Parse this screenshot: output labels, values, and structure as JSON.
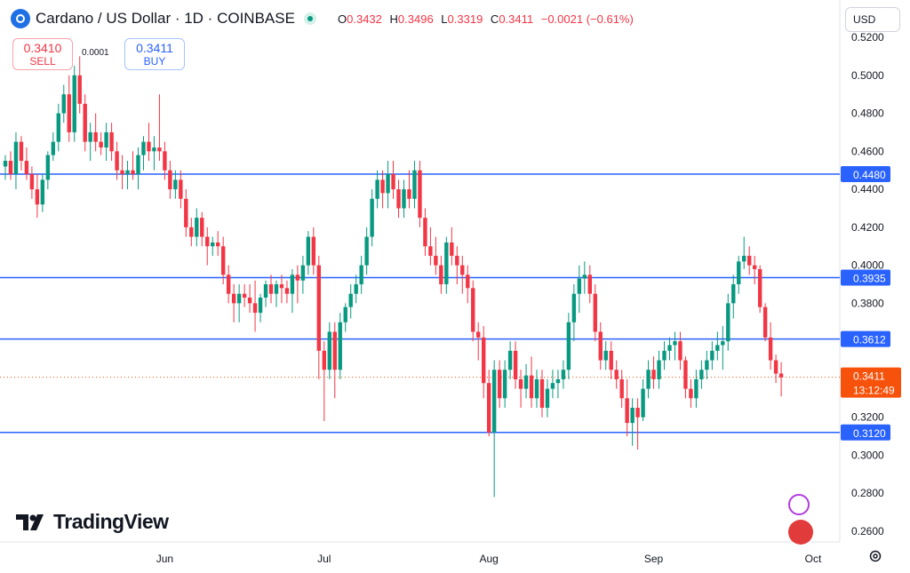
{
  "header": {
    "title": "Cardano / US Dollar · 1D · COINBASE",
    "ohlc": [
      {
        "k": "O",
        "v": "0.3432"
      },
      {
        "k": "H",
        "v": "0.3496"
      },
      {
        "k": "L",
        "v": "0.3319"
      },
      {
        "k": "C",
        "v": "0.3411"
      }
    ],
    "change": "−0.0021 (−0.61%)",
    "currency": "USD"
  },
  "trade": {
    "sell_price": "0.3410",
    "sell_label": "SELL",
    "buy_price": "0.3411",
    "buy_label": "BUY",
    "spread": "0.0001"
  },
  "brand": "TradingView",
  "chart_data": {
    "type": "candlestick",
    "symbol": "Cardano / US Dollar",
    "interval": "1D",
    "exchange": "COINBASE",
    "ylim": [
      0.25,
      0.525
    ],
    "y_ticks": [
      "0.2600",
      "0.2800",
      "0.3000",
      "0.3200",
      "0.3400",
      "0.3600",
      "0.3800",
      "0.4000",
      "0.4200",
      "0.4400",
      "0.4600",
      "0.4800",
      "0.5000",
      "0.5200"
    ],
    "x_ticks": [
      {
        "label": "Jun",
        "day": 30
      },
      {
        "label": "Jul",
        "day": 60
      },
      {
        "label": "Aug",
        "day": 91
      },
      {
        "label": "Sep",
        "day": 122
      },
      {
        "label": "Oct",
        "day": 152
      }
    ],
    "horizontal_lines": [
      {
        "value": 0.448,
        "label": "0.4480"
      },
      {
        "value": 0.3935,
        "label": "0.3935"
      },
      {
        "value": 0.3612,
        "label": "0.3612"
      },
      {
        "value": 0.312,
        "label": "0.3120"
      }
    ],
    "last_price": {
      "value": 0.3411,
      "label": "0.3411",
      "countdown": "13:12:49"
    },
    "colors": {
      "up": "#089981",
      "down": "#f23645",
      "line": "#2962ff",
      "last": "#f7520b"
    },
    "candles": [
      [
        0.452,
        0.458,
        0.445,
        0.455
      ],
      [
        0.455,
        0.46,
        0.445,
        0.448
      ],
      [
        0.448,
        0.47,
        0.44,
        0.465
      ],
      [
        0.465,
        0.468,
        0.45,
        0.455
      ],
      [
        0.455,
        0.462,
        0.445,
        0.448
      ],
      [
        0.448,
        0.452,
        0.435,
        0.44
      ],
      [
        0.44,
        0.448,
        0.425,
        0.432
      ],
      [
        0.432,
        0.448,
        0.428,
        0.445
      ],
      [
        0.445,
        0.46,
        0.44,
        0.458
      ],
      [
        0.458,
        0.47,
        0.455,
        0.465
      ],
      [
        0.465,
        0.485,
        0.46,
        0.48
      ],
      [
        0.48,
        0.495,
        0.475,
        0.49
      ],
      [
        0.49,
        0.5,
        0.465,
        0.47
      ],
      [
        0.47,
        0.505,
        0.465,
        0.5
      ],
      [
        0.5,
        0.51,
        0.48,
        0.485
      ],
      [
        0.485,
        0.49,
        0.46,
        0.465
      ],
      [
        0.465,
        0.475,
        0.455,
        0.47
      ],
      [
        0.47,
        0.48,
        0.46,
        0.465
      ],
      [
        0.465,
        0.47,
        0.458,
        0.462
      ],
      [
        0.462,
        0.475,
        0.455,
        0.47
      ],
      [
        0.47,
        0.475,
        0.455,
        0.46
      ],
      [
        0.46,
        0.465,
        0.445,
        0.45
      ],
      [
        0.45,
        0.458,
        0.44,
        0.448
      ],
      [
        0.448,
        0.455,
        0.44,
        0.45
      ],
      [
        0.45,
        0.46,
        0.445,
        0.448
      ],
      [
        0.448,
        0.462,
        0.44,
        0.458
      ],
      [
        0.458,
        0.468,
        0.45,
        0.465
      ],
      [
        0.465,
        0.475,
        0.455,
        0.46
      ],
      [
        0.46,
        0.468,
        0.45,
        0.462
      ],
      [
        0.462,
        0.49,
        0.455,
        0.46
      ],
      [
        0.46,
        0.465,
        0.445,
        0.45
      ],
      [
        0.45,
        0.455,
        0.435,
        0.44
      ],
      [
        0.44,
        0.45,
        0.435,
        0.445
      ],
      [
        0.445,
        0.45,
        0.43,
        0.435
      ],
      [
        0.435,
        0.44,
        0.415,
        0.42
      ],
      [
        0.42,
        0.425,
        0.41,
        0.415
      ],
      [
        0.415,
        0.43,
        0.41,
        0.425
      ],
      [
        0.425,
        0.428,
        0.41,
        0.415
      ],
      [
        0.415,
        0.42,
        0.4,
        0.41
      ],
      [
        0.41,
        0.415,
        0.405,
        0.412
      ],
      [
        0.412,
        0.418,
        0.405,
        0.41
      ],
      [
        0.41,
        0.415,
        0.39,
        0.395
      ],
      [
        0.395,
        0.4,
        0.38,
        0.385
      ],
      [
        0.385,
        0.39,
        0.37,
        0.38
      ],
      [
        0.38,
        0.39,
        0.37,
        0.385
      ],
      [
        0.385,
        0.39,
        0.378,
        0.383
      ],
      [
        0.383,
        0.39,
        0.375,
        0.38
      ],
      [
        0.38,
        0.392,
        0.365,
        0.375
      ],
      [
        0.375,
        0.385,
        0.37,
        0.383
      ],
      [
        0.383,
        0.392,
        0.378,
        0.39
      ],
      [
        0.39,
        0.395,
        0.38,
        0.385
      ],
      [
        0.385,
        0.392,
        0.378,
        0.39
      ],
      [
        0.39,
        0.395,
        0.38,
        0.388
      ],
      [
        0.388,
        0.392,
        0.38,
        0.385
      ],
      [
        0.385,
        0.398,
        0.375,
        0.395
      ],
      [
        0.395,
        0.4,
        0.38,
        0.392
      ],
      [
        0.392,
        0.405,
        0.385,
        0.4
      ],
      [
        0.4,
        0.418,
        0.395,
        0.415
      ],
      [
        0.415,
        0.42,
        0.395,
        0.4
      ],
      [
        0.4,
        0.405,
        0.34,
        0.355
      ],
      [
        0.355,
        0.36,
        0.318,
        0.345
      ],
      [
        0.345,
        0.37,
        0.34,
        0.365
      ],
      [
        0.365,
        0.37,
        0.33,
        0.345
      ],
      [
        0.345,
        0.375,
        0.34,
        0.37
      ],
      [
        0.37,
        0.38,
        0.365,
        0.378
      ],
      [
        0.378,
        0.39,
        0.372,
        0.385
      ],
      [
        0.385,
        0.395,
        0.38,
        0.39
      ],
      [
        0.39,
        0.405,
        0.385,
        0.4
      ],
      [
        0.4,
        0.42,
        0.395,
        0.415
      ],
      [
        0.415,
        0.44,
        0.41,
        0.435
      ],
      [
        0.435,
        0.45,
        0.43,
        0.445
      ],
      [
        0.445,
        0.45,
        0.43,
        0.438
      ],
      [
        0.438,
        0.455,
        0.43,
        0.448
      ],
      [
        0.448,
        0.455,
        0.435,
        0.44
      ],
      [
        0.44,
        0.445,
        0.425,
        0.43
      ],
      [
        0.43,
        0.445,
        0.425,
        0.44
      ],
      [
        0.44,
        0.45,
        0.43,
        0.435
      ],
      [
        0.435,
        0.455,
        0.43,
        0.45
      ],
      [
        0.45,
        0.455,
        0.42,
        0.425
      ],
      [
        0.425,
        0.43,
        0.405,
        0.41
      ],
      [
        0.41,
        0.42,
        0.4,
        0.405
      ],
      [
        0.405,
        0.415,
        0.395,
        0.4
      ],
      [
        0.4,
        0.405,
        0.385,
        0.39
      ],
      [
        0.39,
        0.415,
        0.385,
        0.412
      ],
      [
        0.412,
        0.42,
        0.4,
        0.405
      ],
      [
        0.405,
        0.41,
        0.39,
        0.4
      ],
      [
        0.4,
        0.405,
        0.385,
        0.395
      ],
      [
        0.395,
        0.4,
        0.38,
        0.388
      ],
      [
        0.388,
        0.392,
        0.36,
        0.365
      ],
      [
        0.365,
        0.37,
        0.35,
        0.362
      ],
      [
        0.362,
        0.368,
        0.33,
        0.338
      ],
      [
        0.338,
        0.345,
        0.31,
        0.312
      ],
      [
        0.312,
        0.35,
        0.278,
        0.345
      ],
      [
        0.345,
        0.35,
        0.325,
        0.33
      ],
      [
        0.33,
        0.35,
        0.325,
        0.345
      ],
      [
        0.345,
        0.36,
        0.34,
        0.355
      ],
      [
        0.355,
        0.36,
        0.335,
        0.34
      ],
      [
        0.34,
        0.345,
        0.325,
        0.335
      ],
      [
        0.335,
        0.348,
        0.33,
        0.342
      ],
      [
        0.342,
        0.352,
        0.325,
        0.33
      ],
      [
        0.33,
        0.345,
        0.325,
        0.34
      ],
      [
        0.34,
        0.345,
        0.32,
        0.325
      ],
      [
        0.325,
        0.34,
        0.32,
        0.335
      ],
      [
        0.335,
        0.345,
        0.33,
        0.338
      ],
      [
        0.338,
        0.345,
        0.33,
        0.34
      ],
      [
        0.34,
        0.35,
        0.335,
        0.345
      ],
      [
        0.345,
        0.375,
        0.34,
        0.37
      ],
      [
        0.37,
        0.39,
        0.36,
        0.385
      ],
      [
        0.385,
        0.4,
        0.375,
        0.393
      ],
      [
        0.393,
        0.402,
        0.385,
        0.395
      ],
      [
        0.395,
        0.4,
        0.38,
        0.385
      ],
      [
        0.385,
        0.39,
        0.36,
        0.365
      ],
      [
        0.365,
        0.37,
        0.345,
        0.35
      ],
      [
        0.35,
        0.36,
        0.345,
        0.355
      ],
      [
        0.355,
        0.36,
        0.34,
        0.345
      ],
      [
        0.345,
        0.35,
        0.335,
        0.34
      ],
      [
        0.34,
        0.345,
        0.325,
        0.33
      ],
      [
        0.33,
        0.34,
        0.31,
        0.317
      ],
      [
        0.317,
        0.33,
        0.305,
        0.325
      ],
      [
        0.325,
        0.33,
        0.303,
        0.32
      ],
      [
        0.32,
        0.34,
        0.318,
        0.335
      ],
      [
        0.335,
        0.35,
        0.33,
        0.345
      ],
      [
        0.345,
        0.352,
        0.335,
        0.34
      ],
      [
        0.34,
        0.355,
        0.335,
        0.35
      ],
      [
        0.35,
        0.36,
        0.345,
        0.355
      ],
      [
        0.355,
        0.362,
        0.35,
        0.358
      ],
      [
        0.358,
        0.365,
        0.35,
        0.36
      ],
      [
        0.36,
        0.365,
        0.345,
        0.35
      ],
      [
        0.35,
        0.352,
        0.33,
        0.335
      ],
      [
        0.335,
        0.34,
        0.325,
        0.33
      ],
      [
        0.33,
        0.345,
        0.325,
        0.34
      ],
      [
        0.34,
        0.35,
        0.335,
        0.345
      ],
      [
        0.345,
        0.355,
        0.34,
        0.35
      ],
      [
        0.35,
        0.36,
        0.345,
        0.355
      ],
      [
        0.355,
        0.365,
        0.35,
        0.358
      ],
      [
        0.358,
        0.368,
        0.345,
        0.36
      ],
      [
        0.36,
        0.385,
        0.355,
        0.38
      ],
      [
        0.38,
        0.395,
        0.372,
        0.39
      ],
      [
        0.39,
        0.405,
        0.385,
        0.402
      ],
      [
        0.402,
        0.415,
        0.398,
        0.405
      ],
      [
        0.405,
        0.41,
        0.395,
        0.4
      ],
      [
        0.4,
        0.405,
        0.39,
        0.398
      ],
      [
        0.398,
        0.4,
        0.375,
        0.378
      ],
      [
        0.378,
        0.38,
        0.36,
        0.362
      ],
      [
        0.362,
        0.37,
        0.345,
        0.35
      ],
      [
        0.35,
        0.353,
        0.338,
        0.343
      ],
      [
        0.343,
        0.349,
        0.331,
        0.341
      ]
    ]
  }
}
